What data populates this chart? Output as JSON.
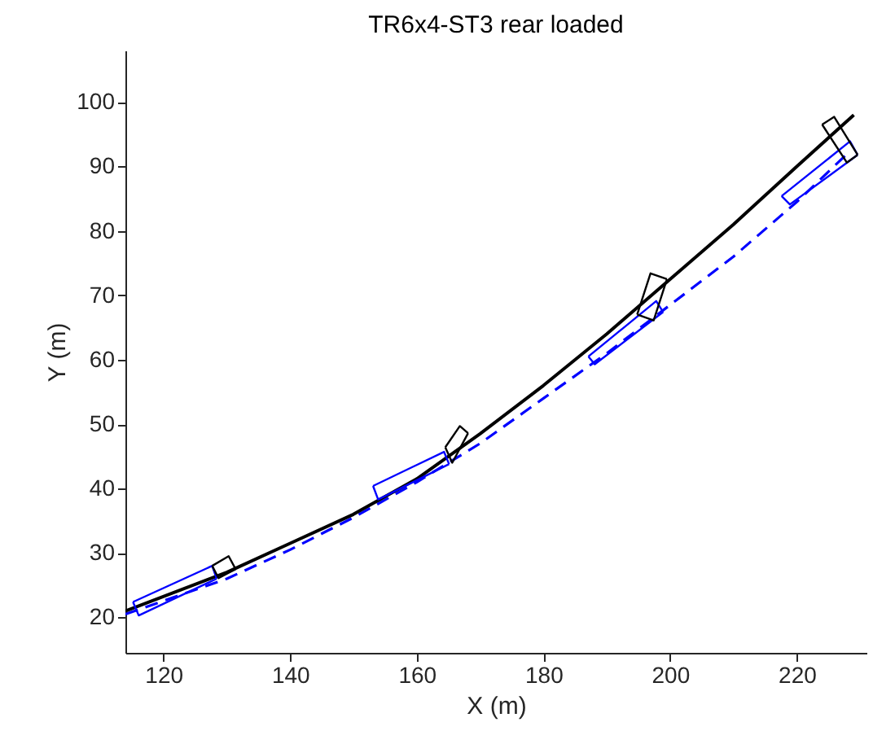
{
  "chart_data": {
    "type": "line",
    "title": "TR6x4-ST3 rear loaded",
    "xlabel": "X (m)",
    "ylabel": "Y (m)",
    "xlim": [
      114,
      231
    ],
    "ylim": [
      14.5,
      108
    ],
    "xticks": [
      120,
      140,
      160,
      180,
      200,
      220
    ],
    "yticks": [
      20,
      30,
      40,
      50,
      60,
      70,
      80,
      90,
      100
    ],
    "grid": false,
    "series": [
      {
        "color": "#0000ff",
        "line_style": "dashed",
        "x": [
          114,
          130,
          140,
          150,
          160,
          170,
          180,
          190,
          200,
          210,
          220,
          228
        ],
        "values": [
          20.5,
          26,
          30.5,
          35.5,
          41,
          47,
          54,
          61,
          68.5,
          76,
          84.5,
          92
        ]
      },
      {
        "color": "#000000",
        "line_style": "solid",
        "x": [
          114,
          130,
          140,
          150,
          160,
          165,
          170,
          180,
          190,
          200,
          210,
          220,
          229
        ],
        "values": [
          21,
          27,
          31.5,
          36,
          41.5,
          45,
          48.5,
          56,
          64,
          72.5,
          81,
          90,
          98
        ]
      },
      {
        "color": "#0000ff",
        "line_style": "solid",
        "x": [
          115.2,
          127.7,
          128.4
        ],
        "values": [
          22.4,
          28.0,
          26.0
        ]
      },
      {
        "color": "#0000ff",
        "line_style": "solid",
        "x": [
          115.2,
          116.1,
          128.4
        ],
        "values": [
          22.4,
          20.3,
          26.0
        ]
      },
      {
        "color": "#000000",
        "line_style": "solid",
        "x": [
          127.7,
          130.3,
          131.4
        ],
        "values": [
          28.0,
          29.5,
          27.5
        ]
      },
      {
        "color": "#000000",
        "line_style": "solid",
        "x": [
          127.7,
          128.7,
          131.4
        ],
        "values": [
          28.0,
          26.1,
          27.5
        ]
      },
      {
        "color": "#0000ff",
        "line_style": "solid",
        "x": [
          153.1,
          164.3,
          165.1
        ],
        "values": [
          40.4,
          45.7,
          43.8
        ]
      },
      {
        "color": "#0000ff",
        "line_style": "solid",
        "x": [
          153.1,
          153.9,
          165.1
        ],
        "values": [
          40.4,
          38.3,
          43.8
        ]
      },
      {
        "color": "#000000",
        "line_style": "solid",
        "x": [
          164.5,
          166.8,
          168.1
        ],
        "values": [
          46.4,
          49.7,
          48.6
        ]
      },
      {
        "color": "#000000",
        "line_style": "solid",
        "x": [
          164.5,
          165.6,
          168.1
        ],
        "values": [
          46.4,
          44.0,
          48.6
        ]
      },
      {
        "color": "#0000ff",
        "line_style": "solid",
        "x": [
          187.1,
          197.8,
          198.9
        ],
        "values": [
          60.5,
          69.1,
          67.4
        ]
      },
      {
        "color": "#0000ff",
        "line_style": "solid",
        "x": [
          187.1,
          188.1,
          198.9
        ],
        "values": [
          60.5,
          59.3,
          67.4
        ]
      },
      {
        "color": "#000000",
        "line_style": "solid",
        "x": [
          194.8,
          196.9,
          199.5
        ],
        "values": [
          67.0,
          73.4,
          72.5
        ]
      },
      {
        "color": "#000000",
        "line_style": "solid",
        "x": [
          194.8,
          197.4,
          199.5
        ],
        "values": [
          67.0,
          66.1,
          72.5
        ]
      },
      {
        "color": "#0000ff",
        "line_style": "solid",
        "x": [
          217.6,
          228.4,
          229.6
        ],
        "values": [
          85.4,
          93.9,
          91.8
        ]
      },
      {
        "color": "#0000ff",
        "line_style": "solid",
        "x": [
          217.6,
          218.9,
          229.6
        ],
        "values": [
          85.4,
          84.1,
          91.8
        ]
      },
      {
        "color": "#000000",
        "line_style": "solid",
        "x": [
          224.0,
          225.9,
          229.6
        ],
        "values": [
          96.5,
          97.7,
          91.8
        ]
      },
      {
        "color": "#000000",
        "line_style": "solid",
        "x": [
          224.0,
          227.9,
          229.6
        ],
        "values": [
          96.5,
          90.6,
          91.8
        ]
      }
    ]
  }
}
